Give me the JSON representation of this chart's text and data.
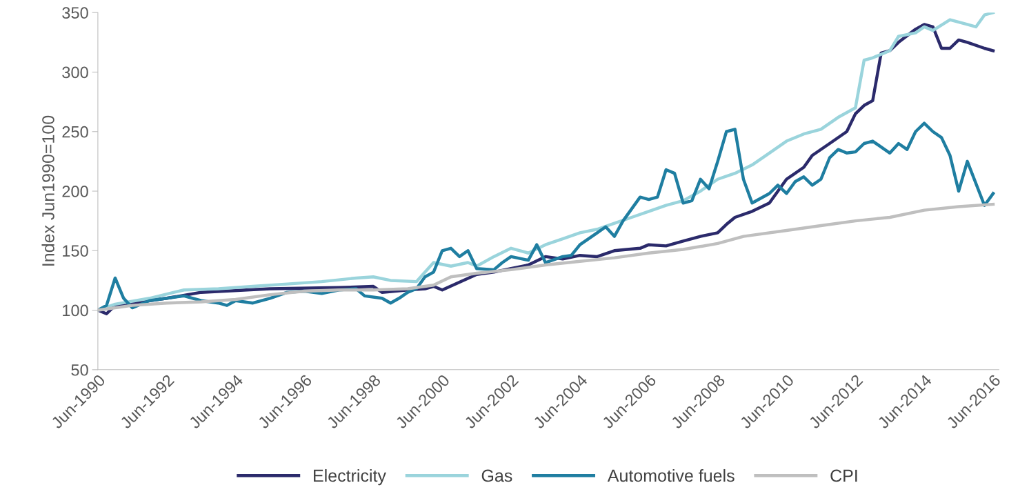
{
  "chart_data": {
    "type": "line",
    "ylabel": "Index Jun1990=100",
    "ylim": [
      50,
      350
    ],
    "yticks": [
      50,
      100,
      150,
      200,
      250,
      300,
      350
    ],
    "xlim": [
      "1990-06",
      "2016-08"
    ],
    "xticks": [
      {
        "value": "1990-06",
        "label": "Jun-1990"
      },
      {
        "value": "1992-06",
        "label": "Jun-1992"
      },
      {
        "value": "1994-06",
        "label": "Jun-1994"
      },
      {
        "value": "1996-06",
        "label": "Jun-1996"
      },
      {
        "value": "1998-06",
        "label": "Jun-1998"
      },
      {
        "value": "2000-06",
        "label": "Jun-2000"
      },
      {
        "value": "2002-06",
        "label": "Jun-2002"
      },
      {
        "value": "2004-06",
        "label": "Jun-2004"
      },
      {
        "value": "2006-06",
        "label": "Jun-2006"
      },
      {
        "value": "2008-06",
        "label": "Jun-2008"
      },
      {
        "value": "2010-06",
        "label": "Jun-2010"
      },
      {
        "value": "2012-06",
        "label": "Jun-2012"
      },
      {
        "value": "2014-06",
        "label": "Jun-2014"
      },
      {
        "value": "2016-06",
        "label": "Jun-2016"
      }
    ],
    "grid": false,
    "legend": "bottom",
    "marker": "none",
    "line_style": "solid",
    "series": [
      {
        "name": "Electricity",
        "color": "#2b2a6b",
        "x": [
          "1990-06",
          "1990-09",
          "1990-12",
          "1991-12",
          "1992-06",
          "1993-06",
          "1995-06",
          "1997-06",
          "1998-06",
          "1998-09",
          "1999-06",
          "1999-12",
          "2000-03",
          "2000-06",
          "2001-06",
          "2001-12",
          "2002-06",
          "2002-12",
          "2003-06",
          "2003-12",
          "2004-06",
          "2004-12",
          "2005-06",
          "2006-03",
          "2006-06",
          "2006-12",
          "2007-06",
          "2007-12",
          "2008-06",
          "2008-09",
          "2008-12",
          "2009-06",
          "2009-12",
          "2010-06",
          "2010-12",
          "2011-03",
          "2011-09",
          "2012-03",
          "2012-06",
          "2012-09",
          "2012-12",
          "2013-03",
          "2013-06",
          "2013-09",
          "2014-03",
          "2014-06",
          "2014-09",
          "2014-12",
          "2015-03",
          "2015-06",
          "2015-09",
          "2016-03",
          "2016-06"
        ],
        "values": [
          100,
          97,
          104,
          108,
          110,
          115,
          118,
          119,
          120,
          115,
          117,
          118,
          120,
          117,
          130,
          132,
          135,
          138,
          145,
          143,
          146,
          145,
          150,
          152,
          155,
          154,
          158,
          162,
          165,
          172,
          178,
          183,
          190,
          210,
          220,
          230,
          240,
          250,
          265,
          272,
          276,
          316,
          318,
          325,
          336,
          340,
          338,
          320,
          320,
          327,
          325,
          320,
          318
        ]
      },
      {
        "name": "Gas",
        "color": "#9ad4dc",
        "x": [
          "1990-06",
          "1990-12",
          "1991-12",
          "1992-12",
          "1993-12",
          "1994-12",
          "1995-12",
          "1996-12",
          "1997-12",
          "1998-06",
          "1998-12",
          "1999-09",
          "2000-03",
          "2000-09",
          "2001-03",
          "2001-06",
          "2001-12",
          "2002-06",
          "2002-12",
          "2003-06",
          "2003-12",
          "2004-06",
          "2004-12",
          "2005-06",
          "2005-12",
          "2006-06",
          "2006-12",
          "2007-06",
          "2007-12",
          "2008-06",
          "2008-12",
          "2009-06",
          "2009-12",
          "2010-06",
          "2010-12",
          "2011-06",
          "2011-12",
          "2012-06",
          "2012-09",
          "2012-12",
          "2013-06",
          "2013-09",
          "2014-03",
          "2014-06",
          "2014-09",
          "2015-03",
          "2015-09",
          "2015-12",
          "2016-03",
          "2016-06"
        ],
        "values": [
          100,
          105,
          110,
          117,
          118,
          120,
          122,
          124,
          127,
          128,
          125,
          124,
          140,
          137,
          140,
          137,
          145,
          152,
          148,
          155,
          160,
          165,
          168,
          173,
          178,
          183,
          188,
          192,
          200,
          210,
          215,
          222,
          232,
          242,
          248,
          252,
          262,
          270,
          310,
          312,
          318,
          330,
          333,
          338,
          335,
          344,
          340,
          338,
          348,
          350
        ]
      },
      {
        "name": "Automotive fuels",
        "color": "#1f7ea1",
        "x": [
          "1990-06",
          "1990-09",
          "1990-12",
          "1991-03",
          "1991-06",
          "1991-12",
          "1992-06",
          "1992-12",
          "1993-06",
          "1993-12",
          "1994-03",
          "1994-06",
          "1994-12",
          "1995-06",
          "1995-12",
          "1996-06",
          "1996-12",
          "1997-06",
          "1997-12",
          "1998-03",
          "1998-09",
          "1998-12",
          "1999-03",
          "1999-06",
          "1999-09",
          "1999-12",
          "2000-03",
          "2000-06",
          "2000-09",
          "2000-12",
          "2001-03",
          "2001-06",
          "2001-12",
          "2002-03",
          "2002-06",
          "2002-12",
          "2003-03",
          "2003-06",
          "2003-12",
          "2004-03",
          "2004-06",
          "2004-12",
          "2005-03",
          "2005-06",
          "2005-09",
          "2006-03",
          "2006-06",
          "2006-09",
          "2006-12",
          "2007-03",
          "2007-06",
          "2007-09",
          "2007-12",
          "2008-03",
          "2008-06",
          "2008-09",
          "2008-12",
          "2009-03",
          "2009-06",
          "2009-12",
          "2010-03",
          "2010-06",
          "2010-09",
          "2010-12",
          "2011-03",
          "2011-06",
          "2011-09",
          "2011-12",
          "2012-03",
          "2012-06",
          "2012-09",
          "2012-12",
          "2013-06",
          "2013-09",
          "2013-12",
          "2014-03",
          "2014-06",
          "2014-09",
          "2014-12",
          "2015-03",
          "2015-06",
          "2015-09",
          "2016-03",
          "2016-06"
        ],
        "values": [
          100,
          104,
          127,
          110,
          102,
          108,
          110,
          112,
          108,
          106,
          104,
          108,
          106,
          110,
          115,
          116,
          114,
          117,
          118,
          112,
          110,
          106,
          110,
          115,
          118,
          128,
          132,
          150,
          152,
          145,
          150,
          135,
          134,
          140,
          145,
          142,
          155,
          140,
          145,
          146,
          155,
          165,
          170,
          162,
          175,
          195,
          193,
          195,
          218,
          215,
          190,
          192,
          210,
          202,
          225,
          250,
          252,
          210,
          190,
          198,
          205,
          198,
          208,
          212,
          205,
          210,
          228,
          235,
          232,
          233,
          240,
          242,
          232,
          240,
          235,
          250,
          257,
          250,
          245,
          230,
          200,
          225,
          188,
          198
        ]
      },
      {
        "name": "CPI",
        "color": "#bfbfbf",
        "x": [
          "1990-06",
          "1991-06",
          "1992-06",
          "1993-06",
          "1994-06",
          "1995-06",
          "1996-06",
          "1997-06",
          "1998-06",
          "1999-06",
          "2000-03",
          "2000-09",
          "2001-06",
          "2002-06",
          "2003-06",
          "2004-06",
          "2005-06",
          "2006-06",
          "2007-06",
          "2008-06",
          "2009-03",
          "2009-06",
          "2010-06",
          "2011-06",
          "2012-06",
          "2013-06",
          "2014-06",
          "2015-06",
          "2016-06"
        ],
        "values": [
          100,
          104,
          106,
          107,
          109,
          113,
          116,
          117,
          117,
          118,
          121,
          128,
          131,
          134,
          138,
          141,
          144,
          148,
          151,
          156,
          162,
          163,
          167,
          171,
          175,
          178,
          184,
          187,
          189
        ]
      }
    ]
  }
}
